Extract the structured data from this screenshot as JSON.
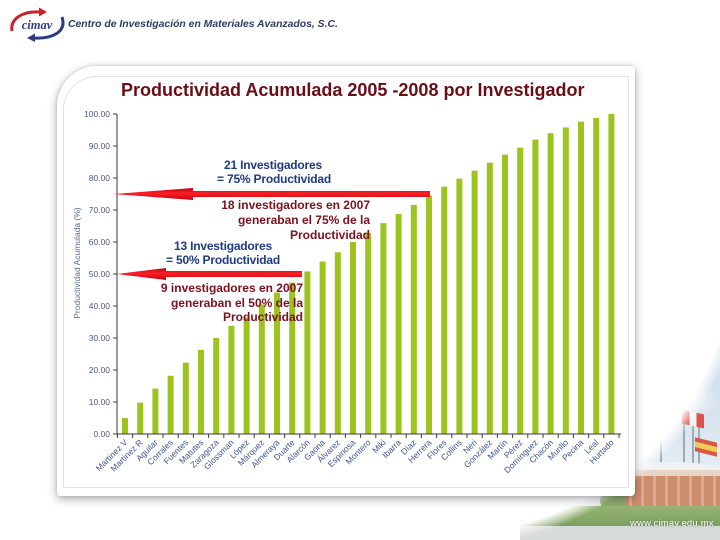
{
  "header": {
    "logo_text": "cimav",
    "org_name": "Centro de Investigación en Materiales Avanzados, S.C."
  },
  "footer": {
    "url": "www.cimav.edu.mx"
  },
  "colors": {
    "title": "#6b0d16",
    "bar": "#9dc41e",
    "arrow": "#e8101a",
    "annotation_blue": "#1f3a82",
    "annotation_red": "#7d0f1e"
  },
  "chart_data": {
    "type": "bar",
    "title": "Productividad Acumulada 2005 -2008 por Investigador",
    "xlabel": "",
    "ylabel": "Productividad Acumulada (%)",
    "ylim": [
      0,
      100
    ],
    "grid": false,
    "legend": null,
    "y_ticks": [
      "0.00",
      "10.00",
      "20.00",
      "30.00",
      "40.00",
      "50.00",
      "60.00",
      "70.00",
      "80.00",
      "90.00",
      "100.00"
    ],
    "categories": [
      "Martinez V",
      "Martinez R",
      "Aguilar",
      "Corrales",
      "Fuentes",
      "Matutes",
      "Zaragoza",
      "Glossman",
      "López",
      "Márquez",
      "Almeraya",
      "Duarte",
      "Alarcón",
      "Gaona",
      "Álvarez",
      "Espinosa",
      "Montero",
      "Miki",
      "Ibarra",
      "Díaz",
      "Herrera",
      "Flores",
      "Collins",
      "Neri",
      "González",
      "Martín",
      "Pérez",
      "Domínguez",
      "Chacón",
      "Murillo",
      "Pecina",
      "Leal",
      "Hurtado"
    ],
    "values": [
      5.0,
      9.8,
      14.2,
      18.2,
      22.3,
      26.3,
      30.0,
      33.8,
      36.5,
      40.5,
      44.2,
      47.3,
      50.8,
      53.9,
      56.8,
      60.0,
      62.8,
      65.9,
      68.8,
      71.6,
      74.5,
      77.3,
      79.8,
      82.3,
      84.8,
      87.3,
      89.5,
      92.0,
      94.0,
      95.8,
      97.6,
      98.8,
      100.0
    ],
    "reference_arrows": [
      {
        "level": 75,
        "direction": "left"
      },
      {
        "level": 50,
        "direction": "left"
      }
    ],
    "annotations": {
      "blue_75": {
        "line1": "21 Investigadores",
        "line2": "= 75% Productividad"
      },
      "red_75": {
        "line1": "18 investigadores en 2007",
        "line2": "generaban el 75% de la",
        "line3": "Productividad"
      },
      "blue_50": {
        "line1": "13 Investigadores",
        "line2": "= 50% Productividad"
      },
      "red_50": {
        "line1": "9 investigadores en 2007",
        "line2": "generaban el 50% de la",
        "line3": "Productividad"
      }
    }
  }
}
